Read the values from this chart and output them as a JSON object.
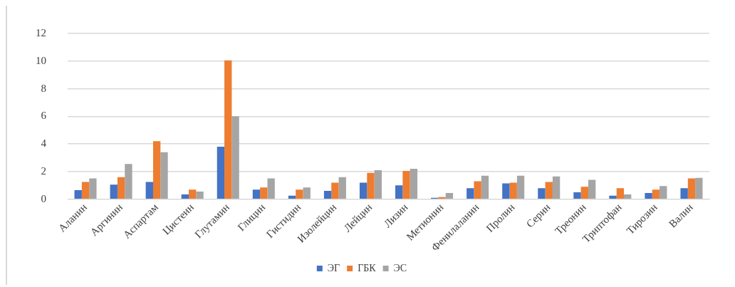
{
  "chart_data": {
    "type": "bar",
    "categories": [
      "Аланин",
      "Аргинин",
      "Аспартам",
      "Цистеин",
      "Глутамин",
      "Глицин",
      "Гистидин",
      "Изолейцин",
      "Лейцин",
      "Лизин",
      "Метионин",
      "Фенилаланин",
      "Пролин",
      "Серин",
      "Треонин",
      "Триптофан",
      "Тирозин",
      "Валин"
    ],
    "series": [
      {
        "name": "ЭГ",
        "color": "#4472c4",
        "values": [
          0.65,
          1.05,
          1.25,
          0.35,
          3.8,
          0.7,
          0.25,
          0.6,
          1.2,
          1.0,
          0.1,
          0.8,
          1.15,
          0.8,
          0.5,
          0.25,
          0.45,
          0.8
        ]
      },
      {
        "name": "ГБК",
        "color": "#ed7d31",
        "values": [
          1.25,
          1.6,
          4.2,
          0.7,
          10.05,
          0.85,
          0.7,
          1.2,
          1.9,
          2.05,
          0.15,
          1.3,
          1.2,
          1.25,
          0.9,
          0.8,
          0.7,
          1.5
        ]
      },
      {
        "name": "ЭС",
        "color": "#a5a5a5",
        "values": [
          1.5,
          2.55,
          3.4,
          0.55,
          6.0,
          1.5,
          0.85,
          1.6,
          2.1,
          2.2,
          0.45,
          1.7,
          1.7,
          1.65,
          1.4,
          0.35,
          0.95,
          1.55
        ]
      }
    ],
    "ylim": [
      0,
      12
    ],
    "yticks": [
      0,
      2,
      4,
      6,
      8,
      10,
      12
    ],
    "grid": "y",
    "legend": "bottom"
  }
}
